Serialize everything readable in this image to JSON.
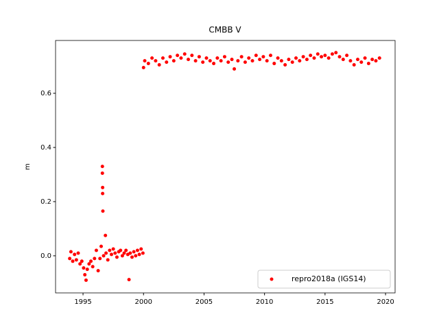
{
  "chart_data": {
    "type": "scatter",
    "title": "CMBB V",
    "ylabel": "m",
    "x": [
      1993.9,
      1994.0,
      1994.15,
      1994.3,
      1994.45,
      1994.6,
      1994.75,
      1994.9,
      1995.05,
      1995.15,
      1995.25,
      1995.35,
      1995.5,
      1995.65,
      1995.8,
      1995.95,
      1996.1,
      1996.25,
      1996.4,
      1996.5,
      1996.6,
      1996.6,
      1996.62,
      1996.62,
      1996.64,
      1996.7,
      1996.85,
      1996.9,
      1997.05,
      1997.2,
      1997.35,
      1997.5,
      1997.65,
      1997.8,
      1997.95,
      1998.1,
      1998.25,
      1998.4,
      1998.55,
      1998.7,
      1998.8,
      1998.9,
      1999.05,
      1999.2,
      1999.35,
      1999.5,
      1999.65,
      1999.8,
      1999.95,
      2000.0,
      2000.1,
      2000.4,
      2000.7,
      2001.0,
      2001.3,
      2001.6,
      2001.9,
      2002.2,
      2002.5,
      2002.8,
      2003.1,
      2003.4,
      2003.7,
      2004.0,
      2004.3,
      2004.6,
      2004.9,
      2005.2,
      2005.5,
      2005.8,
      2006.1,
      2006.4,
      2006.7,
      2007.0,
      2007.3,
      2007.5,
      2007.8,
      2008.1,
      2008.4,
      2008.7,
      2009.0,
      2009.3,
      2009.6,
      2009.9,
      2010.2,
      2010.5,
      2010.8,
      2011.1,
      2011.4,
      2011.7,
      2012.0,
      2012.3,
      2012.6,
      2012.9,
      2013.2,
      2013.5,
      2013.8,
      2014.1,
      2014.4,
      2014.7,
      2015.0,
      2015.3,
      2015.6,
      2015.9,
      2016.2,
      2016.5,
      2016.8,
      2017.1,
      2017.4,
      2017.7,
      2018.0,
      2018.3,
      2018.6,
      2018.9,
      2019.2,
      2019.5
    ],
    "series": [
      {
        "name": "repro2018a (IGS14)",
        "color": "#ff0000",
        "values": [
          -0.01,
          0.015,
          -0.02,
          0.005,
          -0.015,
          0.01,
          -0.03,
          -0.02,
          -0.045,
          -0.07,
          -0.09,
          -0.05,
          -0.03,
          -0.02,
          -0.04,
          -0.01,
          0.02,
          -0.055,
          -0.01,
          0.035,
          0.33,
          0.305,
          0.252,
          0.23,
          0.165,
          0.0,
          0.075,
          0.01,
          -0.015,
          0.02,
          0.005,
          0.025,
          0.01,
          -0.005,
          0.015,
          0.02,
          0.0,
          0.01,
          0.02,
          0.005,
          -0.088,
          0.01,
          -0.005,
          0.015,
          0.0,
          0.02,
          0.005,
          0.025,
          0.01,
          0.695,
          0.72,
          0.71,
          0.73,
          0.72,
          0.705,
          0.73,
          0.715,
          0.735,
          0.72,
          0.74,
          0.73,
          0.745,
          0.725,
          0.74,
          0.72,
          0.735,
          0.715,
          0.73,
          0.72,
          0.71,
          0.73,
          0.72,
          0.735,
          0.715,
          0.725,
          0.69,
          0.72,
          0.735,
          0.715,
          0.73,
          0.72,
          0.74,
          0.725,
          0.735,
          0.72,
          0.74,
          0.71,
          0.73,
          0.72,
          0.705,
          0.725,
          0.715,
          0.73,
          0.72,
          0.735,
          0.725,
          0.74,
          0.73,
          0.745,
          0.735,
          0.74,
          0.73,
          0.745,
          0.75,
          0.735,
          0.725,
          0.74,
          0.72,
          0.705,
          0.725,
          0.715,
          0.73,
          0.71,
          0.725,
          0.72,
          0.73
        ]
      }
    ],
    "xlim": [
      1992.73,
      2020.79
    ],
    "xticks": [
      1995,
      2000,
      2005,
      2010,
      2015,
      2020
    ],
    "ylim": [
      -0.137,
      0.795
    ],
    "yticks": [
      {
        "value": 0,
        "label": "0.0"
      },
      0.2,
      0.4,
      0.6
    ],
    "legend": "lower right",
    "grid": false
  }
}
